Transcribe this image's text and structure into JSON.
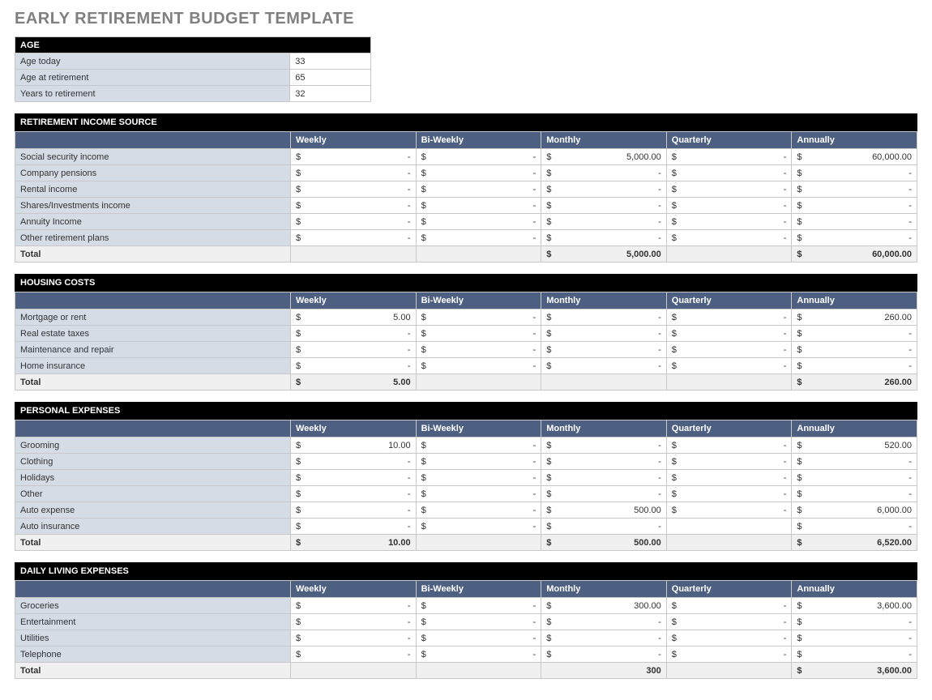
{
  "title": "EARLY RETIREMENT BUDGET TEMPLATE",
  "colors": {
    "title_text": "#808080",
    "section_header_bg": "#000000",
    "section_header_text": "#ffffff",
    "column_header_bg": "#4d6082",
    "column_header_text": "#ffffff",
    "row_label_bg": "#d5dce6",
    "cell_bg": "#ffffff",
    "total_bg": "#f0f0f0",
    "border": "#c8c8c8"
  },
  "age": {
    "header": "AGE",
    "rows": [
      {
        "label": "Age today",
        "value": "33"
      },
      {
        "label": "Age at retirement",
        "value": "65"
      },
      {
        "label": "Years to retirement",
        "value": "32"
      }
    ]
  },
  "period_columns": [
    "Weekly",
    "Bi-Weekly",
    "Monthly",
    "Quarterly",
    "Annually"
  ],
  "currency_symbol": "$",
  "dash": "-",
  "sections": [
    {
      "title": "RETIREMENT INCOME SOURCE",
      "rows": [
        {
          "label": "Social security income",
          "vals": [
            "-",
            "-",
            "5,000.00",
            "-",
            "60,000.00"
          ]
        },
        {
          "label": "Company pensions",
          "vals": [
            "-",
            "-",
            "-",
            "-",
            "-"
          ]
        },
        {
          "label": "Rental income",
          "vals": [
            "-",
            "-",
            "-",
            "-",
            "-"
          ]
        },
        {
          "label": "Shares/Investments income",
          "vals": [
            "-",
            "-",
            "-",
            "-",
            "-"
          ]
        },
        {
          "label": "Annuity Income",
          "vals": [
            "-",
            "-",
            "-",
            "-",
            "-"
          ]
        },
        {
          "label": "Other retirement plans",
          "vals": [
            "-",
            "-",
            "-",
            "-",
            "-"
          ]
        }
      ],
      "total": {
        "label": "Total",
        "vals": [
          "",
          "",
          "5,000.00",
          "",
          "60,000.00"
        ],
        "show_symbol": [
          false,
          false,
          true,
          false,
          true
        ]
      }
    },
    {
      "title": "HOUSING COSTS",
      "rows": [
        {
          "label": "Mortgage or rent",
          "vals": [
            "5.00",
            "-",
            "-",
            "-",
            "260.00"
          ]
        },
        {
          "label": "Real estate taxes",
          "vals": [
            "-",
            "-",
            "-",
            "-",
            "-"
          ]
        },
        {
          "label": "Maintenance and repair",
          "vals": [
            "-",
            "-",
            "-",
            "-",
            "-"
          ]
        },
        {
          "label": "Home insurance",
          "vals": [
            "-",
            "-",
            "-",
            "-",
            "-"
          ]
        }
      ],
      "total": {
        "label": "Total",
        "vals": [
          "5.00",
          "",
          "",
          "",
          "260.00"
        ],
        "show_symbol": [
          true,
          false,
          false,
          false,
          true
        ]
      }
    },
    {
      "title": "PERSONAL EXPENSES",
      "rows": [
        {
          "label": "Grooming",
          "vals": [
            "10.00",
            "-",
            "-",
            "-",
            "520.00"
          ]
        },
        {
          "label": "Clothing",
          "vals": [
            "-",
            "-",
            "-",
            "-",
            "-"
          ]
        },
        {
          "label": "Holidays",
          "vals": [
            "-",
            "-",
            "-",
            "-",
            "-"
          ]
        },
        {
          "label": "Other",
          "vals": [
            "-",
            "-",
            "-",
            "-",
            "-"
          ]
        },
        {
          "label": "Auto expense",
          "vals": [
            "-",
            "-",
            "500.00",
            "-",
            "6,000.00"
          ]
        },
        {
          "label": "Auto insurance",
          "vals": [
            "-",
            "-",
            "-",
            "",
            "-"
          ],
          "suppress_symbol": [
            false,
            false,
            false,
            true,
            false
          ]
        }
      ],
      "total": {
        "label": "Total",
        "vals": [
          "10.00",
          "",
          "500.00",
          "",
          "6,520.00"
        ],
        "show_symbol": [
          true,
          false,
          true,
          false,
          true
        ]
      }
    },
    {
      "title": "DAILY LIVING EXPENSES",
      "rows": [
        {
          "label": "Groceries",
          "vals": [
            "-",
            "-",
            "300.00",
            "-",
            "3,600.00"
          ]
        },
        {
          "label": "Entertainment",
          "vals": [
            "-",
            "-",
            "-",
            "-",
            "-"
          ]
        },
        {
          "label": "Utilities",
          "vals": [
            "-",
            "-",
            "-",
            "-",
            "-"
          ]
        },
        {
          "label": "Telephone",
          "vals": [
            "-",
            "-",
            "-",
            "-",
            "-"
          ]
        }
      ],
      "total": {
        "label": "Total",
        "vals": [
          "",
          "",
          "300",
          "",
          "3,600.00"
        ],
        "show_symbol": [
          false,
          false,
          false,
          false,
          true
        ]
      }
    }
  ]
}
